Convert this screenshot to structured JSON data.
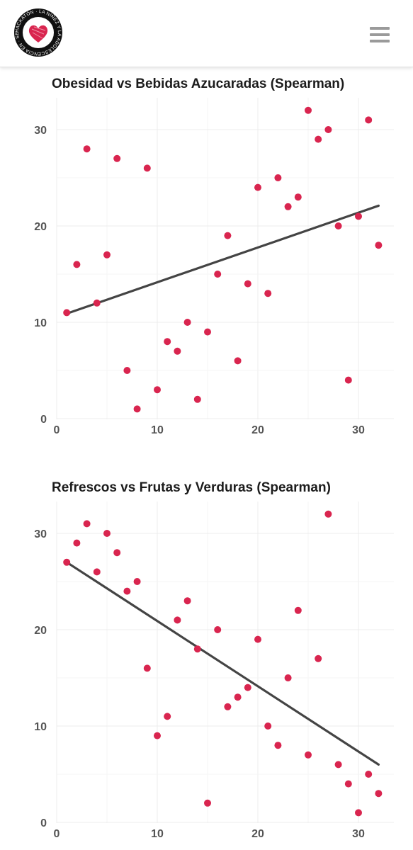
{
  "header": {
    "logo_text": "HACKATÓN · LA NIÑEZ Y LA ADOLESCENCIA EN · SER",
    "menu_icon": "hamburger-icon"
  },
  "colors": {
    "point": "#d9254f",
    "line": "#444444",
    "grid": "#ececec"
  },
  "chart_data": [
    {
      "type": "scatter",
      "title": "Obesidad vs Bebidas Azucaradas (Spearman)",
      "xlabel": "",
      "ylabel": "",
      "xlim": [
        0,
        33
      ],
      "ylim": [
        0,
        33
      ],
      "xticks": [
        0,
        10,
        20,
        30
      ],
      "yticks": [
        0,
        10,
        20,
        30
      ],
      "grid": true,
      "points": [
        [
          1,
          11
        ],
        [
          2,
          16
        ],
        [
          3,
          28
        ],
        [
          4,
          12
        ],
        [
          5,
          17
        ],
        [
          6,
          27
        ],
        [
          7,
          5
        ],
        [
          8,
          1
        ],
        [
          9,
          26
        ],
        [
          10,
          3
        ],
        [
          11,
          8
        ],
        [
          12,
          7
        ],
        [
          13,
          10
        ],
        [
          14,
          2
        ],
        [
          15,
          9
        ],
        [
          16,
          15
        ],
        [
          17,
          19
        ],
        [
          18,
          6
        ],
        [
          19,
          14
        ],
        [
          20,
          24
        ],
        [
          21,
          13
        ],
        [
          22,
          25
        ],
        [
          23,
          22
        ],
        [
          24,
          23
        ],
        [
          25,
          32
        ],
        [
          26,
          29
        ],
        [
          27,
          30
        ],
        [
          28,
          20
        ],
        [
          29,
          4
        ],
        [
          30,
          21
        ],
        [
          31,
          31
        ],
        [
          32,
          18
        ]
      ],
      "trend": [
        [
          1,
          10.9
        ],
        [
          32,
          22.1
        ]
      ]
    },
    {
      "type": "scatter",
      "title": "Refrescos vs Frutas y Verduras (Spearman)",
      "xlabel": "",
      "ylabel": "",
      "xlim": [
        0,
        33
      ],
      "ylim": [
        0,
        33
      ],
      "xticks": [
        0,
        10,
        20,
        30
      ],
      "yticks": [
        0,
        10,
        20,
        30
      ],
      "grid": true,
      "points": [
        [
          1,
          27
        ],
        [
          2,
          29
        ],
        [
          3,
          31
        ],
        [
          4,
          26
        ],
        [
          5,
          30
        ],
        [
          6,
          28
        ],
        [
          7,
          24
        ],
        [
          8,
          25
        ],
        [
          9,
          16
        ],
        [
          10,
          9
        ],
        [
          11,
          11
        ],
        [
          12,
          21
        ],
        [
          13,
          23
        ],
        [
          14,
          18
        ],
        [
          15,
          2
        ],
        [
          16,
          20
        ],
        [
          17,
          12
        ],
        [
          18,
          13
        ],
        [
          19,
          14
        ],
        [
          20,
          19
        ],
        [
          21,
          10
        ],
        [
          22,
          8
        ],
        [
          23,
          15
        ],
        [
          24,
          22
        ],
        [
          25,
          7
        ],
        [
          26,
          17
        ],
        [
          27,
          32
        ],
        [
          28,
          6
        ],
        [
          29,
          4
        ],
        [
          30,
          1
        ],
        [
          31,
          5
        ],
        [
          32,
          3
        ]
      ],
      "trend": [
        [
          1,
          27
        ],
        [
          32,
          6
        ]
      ]
    }
  ]
}
